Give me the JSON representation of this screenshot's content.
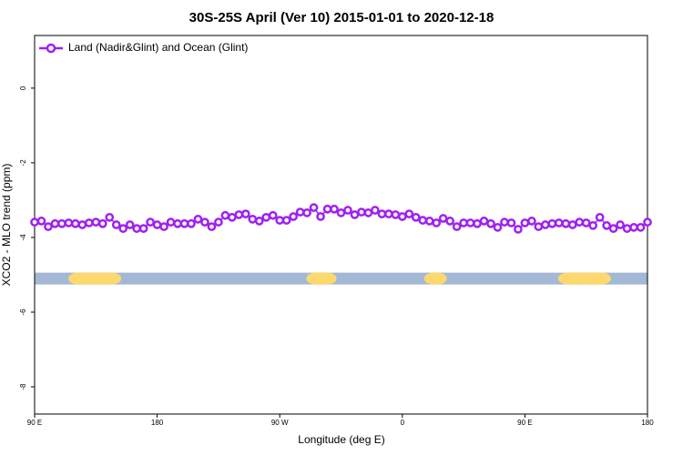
{
  "chart_data": {
    "type": "line",
    "title": "30S-25S April (Ver 10)   2015-01-01 to 2020-12-18",
    "xlabel": "Longitude (deg E)",
    "ylabel": "XCO2 - MLO trend (ppm)",
    "xlim": [
      90,
      540
    ],
    "ylim": [
      -8.73,
      1.41
    ],
    "xticks": [
      {
        "value": 90,
        "label": "90 E"
      },
      180,
      {
        "value": 270,
        "label": "90 W"
      },
      {
        "value": 360,
        "label": "0"
      },
      {
        "value": 450,
        "label": "90 E"
      },
      {
        "value": 540,
        "label": "180"
      }
    ],
    "yticks": [
      0,
      -2,
      -4,
      -6,
      -8
    ],
    "legend": "top-left",
    "x": [
      90,
      95,
      100,
      105,
      110,
      115,
      120,
      125,
      130,
      135,
      140,
      145,
      150,
      155,
      160,
      165,
      170,
      175,
      180,
      185,
      190,
      195,
      200,
      205,
      210,
      215,
      220,
      225,
      230,
      235,
      240,
      245,
      250,
      255,
      260,
      265,
      270,
      275,
      280,
      285,
      290,
      295,
      300,
      305,
      310,
      315,
      320,
      325,
      330,
      335,
      340,
      345,
      350,
      355,
      360,
      365,
      370,
      375,
      380,
      385,
      390,
      395,
      400,
      405,
      410,
      415,
      420,
      425,
      430,
      435,
      440,
      445,
      450,
      455,
      460,
      465,
      470,
      475,
      480,
      485,
      490,
      495,
      500,
      505,
      510,
      515,
      520,
      525,
      530,
      535,
      540
    ],
    "series": [
      {
        "name": "Land (Nadir&Glint) and Ocean (Glint)",
        "color": "#a020f0",
        "values": [
          -3.59,
          -3.56,
          -3.71,
          -3.63,
          -3.63,
          -3.61,
          -3.63,
          -3.66,
          -3.61,
          -3.59,
          -3.63,
          -3.46,
          -3.66,
          -3.76,
          -3.66,
          -3.76,
          -3.76,
          -3.59,
          -3.66,
          -3.71,
          -3.59,
          -3.63,
          -3.63,
          -3.63,
          -3.51,
          -3.59,
          -3.71,
          -3.59,
          -3.41,
          -3.46,
          -3.39,
          -3.37,
          -3.51,
          -3.56,
          -3.46,
          -3.41,
          -3.54,
          -3.54,
          -3.44,
          -3.32,
          -3.34,
          -3.2,
          -3.44,
          -3.24,
          -3.24,
          -3.34,
          -3.27,
          -3.39,
          -3.32,
          -3.34,
          -3.27,
          -3.37,
          -3.37,
          -3.39,
          -3.44,
          -3.37,
          -3.46,
          -3.54,
          -3.56,
          -3.61,
          -3.49,
          -3.56,
          -3.71,
          -3.61,
          -3.61,
          -3.63,
          -3.56,
          -3.63,
          -3.73,
          -3.59,
          -3.61,
          -3.78,
          -3.61,
          -3.56,
          -3.71,
          -3.66,
          -3.63,
          -3.61,
          -3.63,
          -3.66,
          -3.59,
          -3.61,
          -3.68,
          -3.46,
          -3.68,
          -3.76,
          -3.66,
          -3.76,
          -3.73,
          -3.73,
          -3.59
        ]
      }
    ],
    "surface_band": {
      "y": -5.1,
      "color": "#a3b8d5",
      "land_color": "#fcd86d",
      "land": [
        [
          114.8,
          153.6
        ],
        [
          289.5,
          311.7
        ],
        [
          376,
          392.7
        ],
        [
          474.4,
          513.2
        ]
      ]
    }
  }
}
